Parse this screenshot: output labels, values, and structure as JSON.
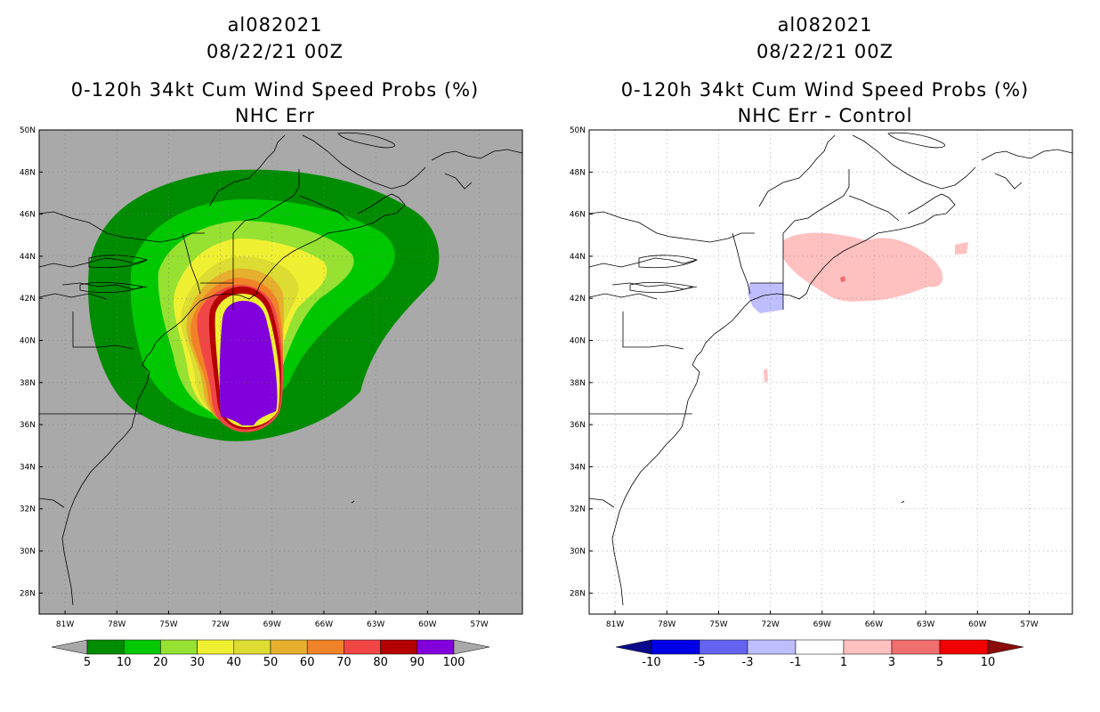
{
  "left_panel": {
    "storm_id": "al082021",
    "datetime": "08/22/21 00Z",
    "product": "0-120h 34kt Cum Wind Speed Probs (%)",
    "subtitle": "NHC Err",
    "background_color": "#a9a9a9",
    "colorbar": {
      "labels": [
        "5",
        "10",
        "20",
        "30",
        "40",
        "50",
        "60",
        "70",
        "80",
        "90",
        "100"
      ],
      "colors": [
        "#008c00",
        "#00c800",
        "#96e132",
        "#f0f032",
        "#dcdc32",
        "#e6af2d",
        "#f08228",
        "#f04646",
        "#b40000",
        "#8200dc"
      ],
      "under_color": "#a9a9a9",
      "over_color": "#a9a9a9"
    }
  },
  "right_panel": {
    "storm_id": "al082021",
    "datetime": "08/22/21 00Z",
    "product": "0-120h 34kt Cum Wind Speed Probs (%)",
    "subtitle": "NHC Err - Control",
    "background_color": "#ffffff",
    "colorbar": {
      "labels": [
        "-10",
        "-5",
        "-3",
        "-1",
        "1",
        "3",
        "5",
        "10"
      ],
      "colors": [
        "#0000e6",
        "#6464f0",
        "#bebeff",
        "#ffffff",
        "#ffc0c0",
        "#f06e6e",
        "#f00000"
      ],
      "under_color": "#0a0a8c",
      "over_color": "#8c0a0a"
    }
  },
  "map": {
    "lat_labels": [
      "50N",
      "48N",
      "46N",
      "44N",
      "42N",
      "40N",
      "38N",
      "36N",
      "34N",
      "32N",
      "30N",
      "28N"
    ],
    "lon_labels": [
      "81W",
      "78W",
      "75W",
      "72W",
      "69W",
      "66W",
      "63W",
      "60W",
      "57W"
    ]
  }
}
